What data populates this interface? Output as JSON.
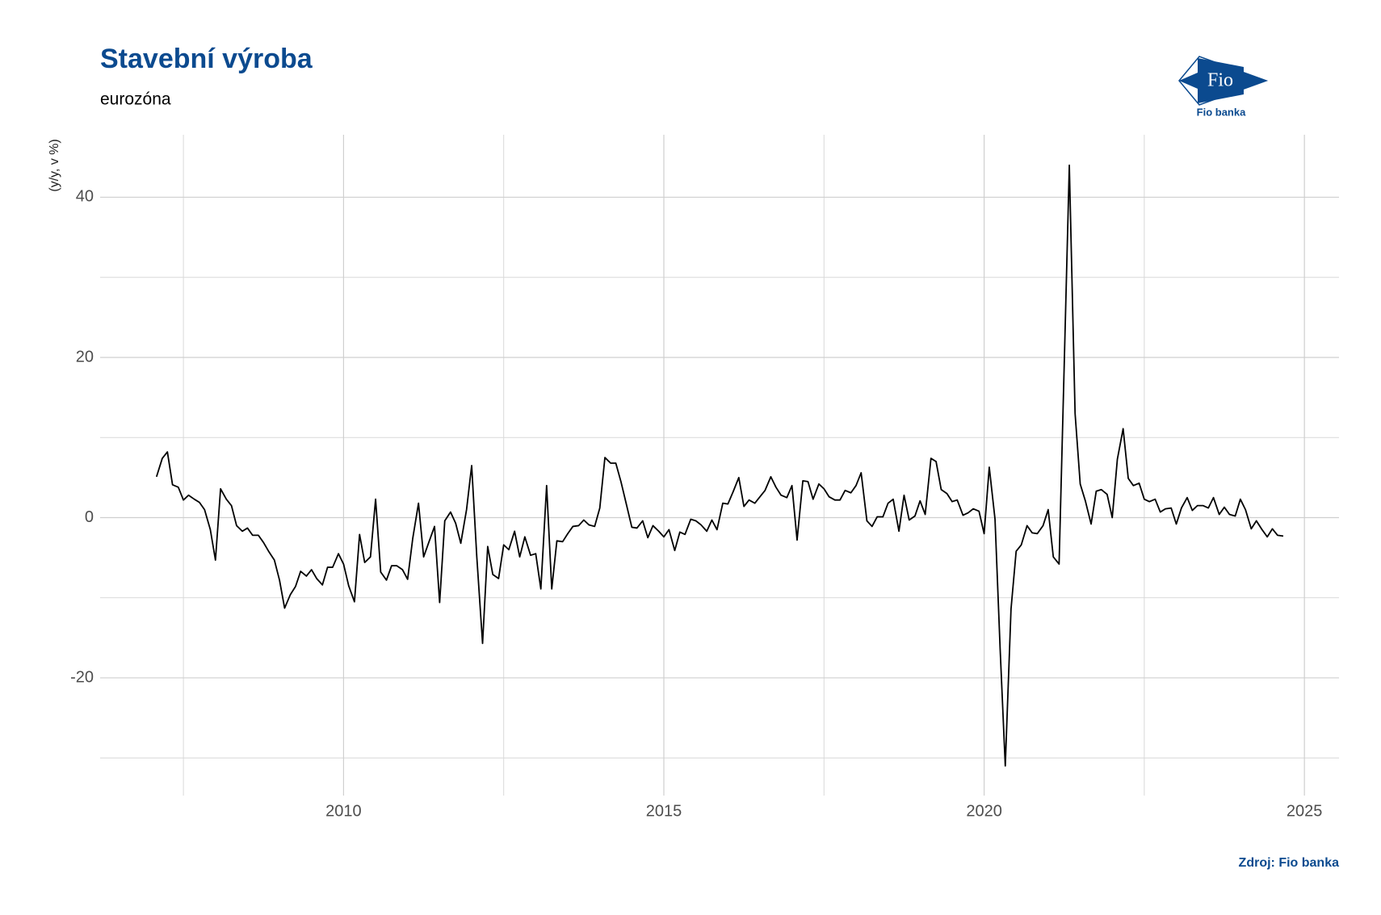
{
  "chart_data": {
    "type": "line",
    "title": "Stavební výroba",
    "subtitle": "eurozóna",
    "y_label": "(y/y, v %)",
    "source": "Zdroj: Fio banka",
    "logo": {
      "mark": "Fio",
      "name": "Fio banka"
    },
    "xlim": [
      2006.2,
      2025.54
    ],
    "ylim": [
      -34.7,
      47.8
    ],
    "xticks": [
      2010,
      2015,
      2020,
      2025
    ],
    "yticks": [
      -20,
      0,
      20,
      40
    ],
    "x_minor_grid": [
      2007.5,
      2012.5,
      2017.5,
      2022.5
    ],
    "y_minor_grid": [
      -30,
      -10,
      10,
      30
    ],
    "grid": true,
    "series": [
      {
        "color": "#000000",
        "x": [
          2007.08,
          2007.17,
          2007.25,
          2007.33,
          2007.42,
          2007.5,
          2007.58,
          2007.67,
          2007.75,
          2007.83,
          2007.92,
          2008.0,
          2008.08,
          2008.17,
          2008.25,
          2008.33,
          2008.42,
          2008.5,
          2008.58,
          2008.67,
          2008.75,
          2008.83,
          2008.92,
          2009.0,
          2009.08,
          2009.17,
          2009.25,
          2009.33,
          2009.42,
          2009.5,
          2009.58,
          2009.67,
          2009.75,
          2009.83,
          2009.92,
          2010.0,
          2010.08,
          2010.17,
          2010.25,
          2010.33,
          2010.42,
          2010.5,
          2010.58,
          2010.67,
          2010.75,
          2010.83,
          2010.92,
          2011.0,
          2011.08,
          2011.17,
          2011.25,
          2011.33,
          2011.42,
          2011.5,
          2011.58,
          2011.67,
          2011.75,
          2011.83,
          2011.92,
          2012.0,
          2012.08,
          2012.17,
          2012.25,
          2012.33,
          2012.42,
          2012.5,
          2012.58,
          2012.67,
          2012.75,
          2012.83,
          2012.92,
          2013.0,
          2013.08,
          2013.17,
          2013.25,
          2013.33,
          2013.42,
          2013.5,
          2013.58,
          2013.67,
          2013.75,
          2013.83,
          2013.92,
          2014.0,
          2014.08,
          2014.17,
          2014.25,
          2014.33,
          2014.42,
          2014.5,
          2014.58,
          2014.67,
          2014.75,
          2014.83,
          2014.92,
          2015.0,
          2015.08,
          2015.17,
          2015.25,
          2015.33,
          2015.42,
          2015.5,
          2015.58,
          2015.67,
          2015.75,
          2015.83,
          2015.92,
          2016.0,
          2016.08,
          2016.17,
          2016.25,
          2016.33,
          2016.42,
          2016.5,
          2016.58,
          2016.67,
          2016.75,
          2016.83,
          2016.92,
          2017.0,
          2017.08,
          2017.17,
          2017.25,
          2017.33,
          2017.42,
          2017.5,
          2017.58,
          2017.67,
          2017.75,
          2017.83,
          2017.92,
          2018.0,
          2018.08,
          2018.17,
          2018.25,
          2018.33,
          2018.42,
          2018.5,
          2018.58,
          2018.67,
          2018.75,
          2018.83,
          2018.92,
          2019.0,
          2019.08,
          2019.17,
          2019.25,
          2019.33,
          2019.42,
          2019.5,
          2019.58,
          2019.67,
          2019.75,
          2019.83,
          2019.92,
          2020.0,
          2020.08,
          2020.17,
          2020.25,
          2020.33,
          2020.42,
          2020.5,
          2020.58,
          2020.67,
          2020.75,
          2020.83,
          2020.92,
          2021.0,
          2021.08,
          2021.17,
          2021.25,
          2021.33,
          2021.42,
          2021.5,
          2021.58,
          2021.67,
          2021.75,
          2021.83,
          2021.92,
          2022.0,
          2022.08,
          2022.17,
          2022.25,
          2022.33,
          2022.42,
          2022.5,
          2022.58,
          2022.67,
          2022.75,
          2022.83,
          2022.92,
          2023.0,
          2023.08,
          2023.17,
          2023.25,
          2023.33,
          2023.42,
          2023.5,
          2023.58,
          2023.67,
          2023.75,
          2023.83,
          2023.92,
          2024.0,
          2024.08,
          2024.17,
          2024.25,
          2024.33,
          2024.42,
          2024.5,
          2024.58,
          2024.67
        ],
        "values": [
          5.1,
          7.4,
          8.2,
          4.1,
          3.8,
          2.2,
          2.8,
          2.3,
          1.9,
          1.0,
          -1.5,
          -5.3,
          3.6,
          2.3,
          1.5,
          -1.0,
          -1.7,
          -1.3,
          -2.2,
          -2.2,
          -3.1,
          -4.2,
          -5.3,
          -7.8,
          -11.3,
          -9.6,
          -8.6,
          -6.7,
          -7.3,
          -6.5,
          -7.6,
          -8.4,
          -6.2,
          -6.2,
          -4.5,
          -5.8,
          -8.5,
          -10.5,
          -2.1,
          -5.6,
          -4.9,
          2.3,
          -6.8,
          -7.8,
          -6.0,
          -6.0,
          -6.5,
          -7.7,
          -2.6,
          1.8,
          -4.9,
          -3.1,
          -1.1,
          -10.6,
          -0.4,
          0.7,
          -0.7,
          -3.2,
          1.0,
          6.5,
          -4.9,
          -15.7,
          -3.6,
          -7.1,
          -7.6,
          -3.4,
          -4.0,
          -1.7,
          -4.9,
          -2.4,
          -4.7,
          -4.5,
          -8.9,
          4.0,
          -8.9,
          -2.9,
          -3.0,
          -2.0,
          -1.1,
          -1.0,
          -0.3,
          -0.9,
          -1.1,
          1.2,
          7.5,
          6.8,
          6.8,
          4.5,
          1.5,
          -1.2,
          -1.3,
          -0.4,
          -2.5,
          -1.0,
          -1.7,
          -2.4,
          -1.5,
          -4.1,
          -1.8,
          -2.1,
          -0.2,
          -0.4,
          -0.9,
          -1.7,
          -0.3,
          -1.5,
          1.8,
          1.7,
          3.2,
          5.0,
          1.4,
          2.2,
          1.8,
          2.6,
          3.4,
          5.1,
          3.8,
          2.8,
          2.5,
          4.0,
          -2.8,
          4.6,
          4.5,
          2.3,
          4.2,
          3.6,
          2.6,
          2.2,
          2.2,
          3.4,
          3.1,
          4.0,
          5.6,
          -0.4,
          -1.1,
          0.1,
          0.1,
          1.8,
          2.3,
          -1.7,
          2.8,
          -0.3,
          0.2,
          2.1,
          0.4,
          7.4,
          7.0,
          3.5,
          3.0,
          2.0,
          2.2,
          0.3,
          0.6,
          1.1,
          0.8,
          -2.0,
          6.3,
          -0.2,
          -16.4,
          -31.0,
          -11.4,
          -4.2,
          -3.4,
          -1.0,
          -1.9,
          -2.0,
          -1.0,
          1.0,
          -4.9,
          -5.8,
          19.0,
          44.0,
          13.0,
          4.2,
          2.1,
          -0.8,
          3.3,
          3.5,
          2.9,
          0.0,
          7.3,
          11.1,
          4.9,
          4.0,
          4.3,
          2.3,
          2.0,
          2.3,
          0.7,
          1.1,
          1.2,
          -0.8,
          1.2,
          2.5,
          0.9,
          1.5,
          1.5,
          1.2,
          2.5,
          0.4,
          1.3,
          0.4,
          0.2,
          2.3,
          1.0,
          -1.4,
          -0.4,
          -1.4,
          -2.4,
          -1.4,
          -2.2,
          -2.3
        ]
      }
    ]
  }
}
